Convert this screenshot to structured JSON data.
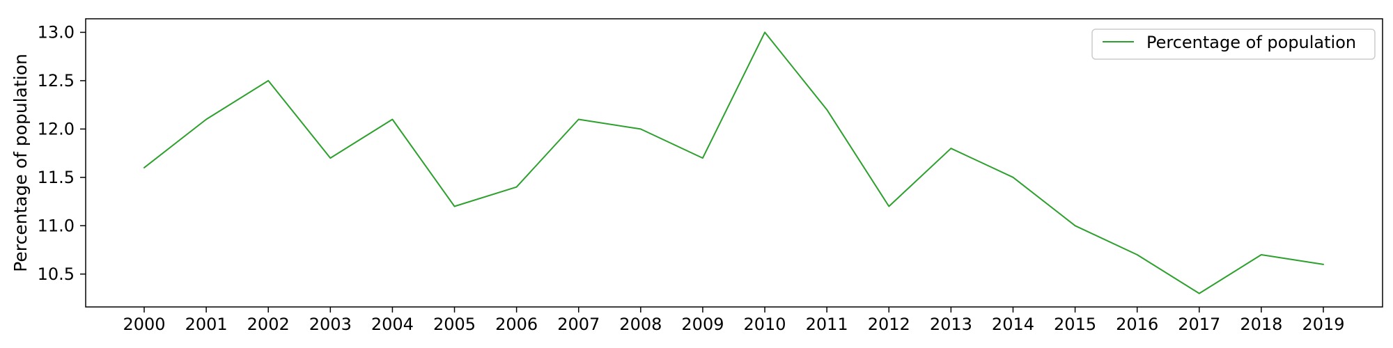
{
  "chart_data": {
    "type": "line",
    "title": "",
    "xlabel": "",
    "ylabel": "Percentage of population",
    "x": [
      "2000",
      "2001",
      "2002",
      "2003",
      "2004",
      "2005",
      "2006",
      "2007",
      "2008",
      "2009",
      "2010",
      "2011",
      "2012",
      "2013",
      "2014",
      "2015",
      "2016",
      "2017",
      "2018",
      "2019"
    ],
    "series": [
      {
        "name": "Percentage of population",
        "color": "#2ca02c",
        "values": [
          11.6,
          12.1,
          12.5,
          11.7,
          12.1,
          11.2,
          11.4,
          12.1,
          12.0,
          11.7,
          13.0,
          12.2,
          11.2,
          11.8,
          11.5,
          11.0,
          10.7,
          10.3,
          10.7,
          10.6
        ]
      }
    ],
    "ylim": [
      10.16,
      13.14
    ],
    "yticks": [
      "10.5",
      "11.0",
      "11.5",
      "12.0",
      "12.5",
      "13.0"
    ],
    "grid": false,
    "legend_position": "top-right"
  }
}
